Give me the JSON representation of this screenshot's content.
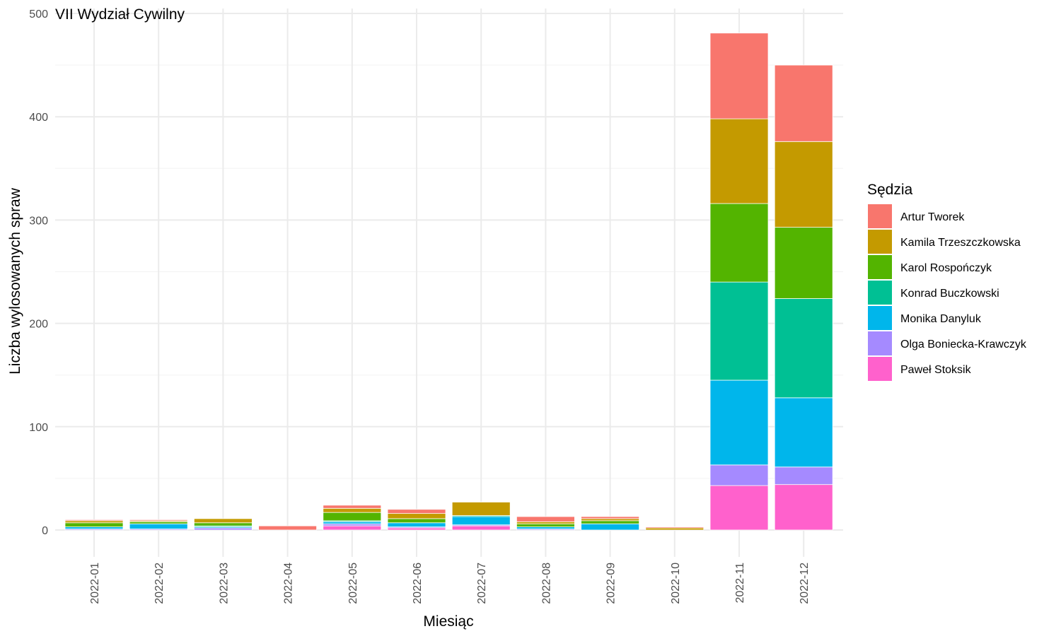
{
  "chart_data": {
    "type": "bar",
    "stacked": true,
    "title": "VII Wydział Cywilny",
    "xlabel": "Miesiąc",
    "ylabel": "Liczba wylosowanych spraw",
    "ylim": [
      0,
      500
    ],
    "yticks": [
      0,
      100,
      200,
      300,
      400,
      500
    ],
    "grid": true,
    "legend_title": "Sędzia",
    "legend_position": "right",
    "categories": [
      "2022-01",
      "2022-02",
      "2022-03",
      "2022-04",
      "2022-05",
      "2022-06",
      "2022-07",
      "2022-08",
      "2022-09",
      "2022-10",
      "2022-11",
      "2022-12"
    ],
    "series": [
      {
        "name": "Paweł Stoksik",
        "color": "#FF61CC",
        "values": [
          0,
          0,
          0,
          0,
          4,
          2,
          4,
          0,
          0,
          0,
          43,
          44
        ]
      },
      {
        "name": "Olga Boniecka-Krawczyk",
        "color": "#A58AFF",
        "values": [
          1,
          1,
          2,
          0,
          2,
          1,
          1,
          1,
          0,
          0,
          20,
          17
        ]
      },
      {
        "name": "Monika Danyluk",
        "color": "#00B6EB",
        "values": [
          2,
          5,
          1,
          0,
          2,
          4,
          8,
          2,
          6,
          0,
          82,
          67
        ]
      },
      {
        "name": "Konrad Buczkowski",
        "color": "#00C094",
        "values": [
          0,
          0,
          1,
          0,
          1,
          0,
          1,
          0,
          0,
          0,
          95,
          96
        ]
      },
      {
        "name": "Karol Rospończyk",
        "color": "#53B400",
        "values": [
          4,
          2,
          3,
          0,
          8,
          4,
          0,
          3,
          3,
          0,
          76,
          69
        ]
      },
      {
        "name": "Kamila Trzeszczkowska",
        "color": "#C49A00",
        "values": [
          2,
          1,
          4,
          0,
          4,
          5,
          13,
          2,
          2,
          2,
          82,
          83
        ]
      },
      {
        "name": "Artur Tworek",
        "color": "#F8766D",
        "values": [
          1,
          1,
          0,
          4,
          3,
          4,
          0,
          5,
          2,
          1,
          83,
          74
        ]
      }
    ],
    "legend_order": [
      "Artur Tworek",
      "Kamila Trzeszczkowska",
      "Karol Rospończyk",
      "Konrad Buczkowski",
      "Monika Danyluk",
      "Olga Boniecka-Krawczyk",
      "Paweł Stoksik"
    ]
  }
}
